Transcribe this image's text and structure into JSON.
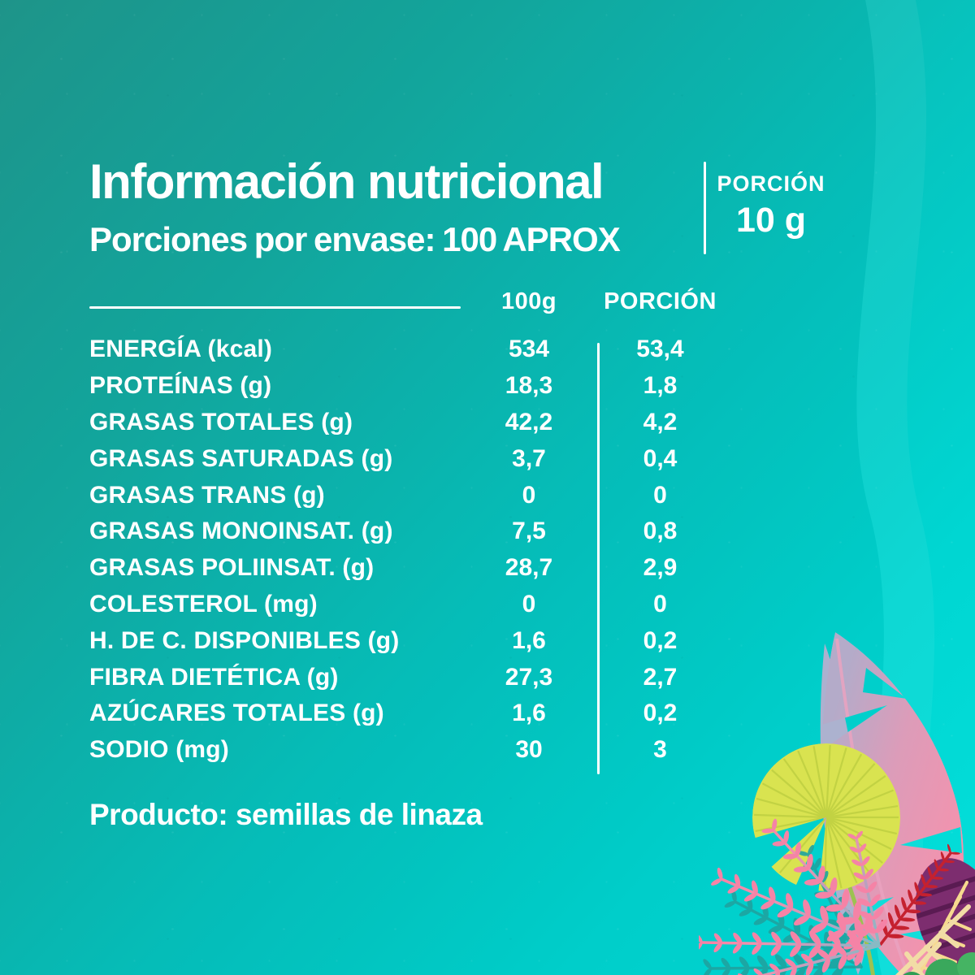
{
  "page": {
    "background_top_left": "#20998e",
    "background_bottom_right": "#04dfdb",
    "text_color": "#ffffff"
  },
  "header": {
    "title": "Información nutricional",
    "subtitle": "Porciones por envase: 100 APROX",
    "portion_label": "PORCIÓN",
    "portion_value": "10 g"
  },
  "table": {
    "col_100g": "100g",
    "col_portion": "PORCIÓN",
    "rows": [
      {
        "label": "ENERGÍA (kcal)",
        "per100g": "534",
        "portion": "53,4"
      },
      {
        "label": "PROTEÍNAS (g)",
        "per100g": "18,3",
        "portion": "1,8"
      },
      {
        "label": "GRASAS TOTALES (g)",
        "per100g": "42,2",
        "portion": "4,2"
      },
      {
        "label": "GRASAS SATURADAS (g)",
        "per100g": "3,7",
        "portion": "0,4"
      },
      {
        "label": "GRASAS TRANS (g)",
        "per100g": "0",
        "portion": "0"
      },
      {
        "label": "GRASAS MONOINSAT. (g)",
        "per100g": "7,5",
        "portion": "0,8"
      },
      {
        "label": "GRASAS POLIINSAT. (g)",
        "per100g": "28,7",
        "portion": "2,9"
      },
      {
        "label": "COLESTEROL (mg)",
        "per100g": "0",
        "portion": "0"
      },
      {
        "label": "H. DE C. DISPONIBLES (g)",
        "per100g": "1,6",
        "portion": "0,2"
      },
      {
        "label": "FIBRA DIETÉTICA (g)",
        "per100g": "27,3",
        "portion": "2,7"
      },
      {
        "label": "AZÚCARES TOTALES (g)",
        "per100g": "1,6",
        "portion": "0,2"
      },
      {
        "label": "SODIO (mg)",
        "per100g": "30",
        "portion": "3"
      }
    ]
  },
  "footer": {
    "product_line": "Producto: semillas de linaza"
  },
  "decoration": {
    "name": "tropical-leaves-illustration",
    "colors": {
      "fan_palm": "#d9e350",
      "fan_palm_stripe": "#c2d243",
      "fan_stem": "#9cc251",
      "banana_leaf_pink": "#f492ad",
      "banana_leaf_mauve": "#b4abc9",
      "fern_pink": "#f583a6",
      "fern_teal_base": "#84bcc4",
      "shadow_fern_teal": "#1fa3a0",
      "red_fern": "#c5212f",
      "purple_leaf": "#7d2d6f",
      "purple_stripe": "#5a1b52",
      "vein_cream": "#f6d98f",
      "twig_cream": "#f2dca6",
      "foliage_green": "#3aa85c"
    }
  }
}
